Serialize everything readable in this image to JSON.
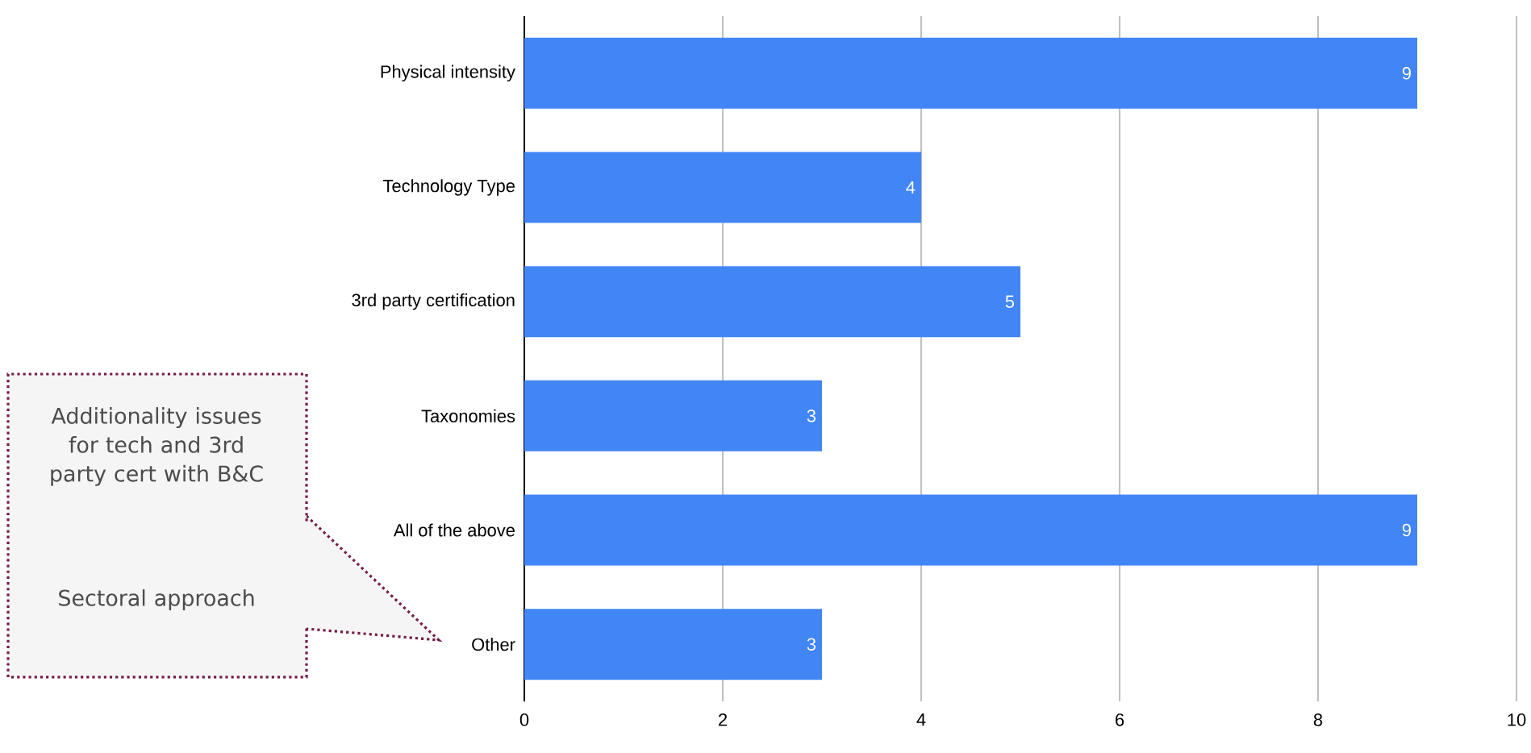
{
  "chart_data": {
    "type": "bar",
    "orientation": "horizontal",
    "categories": [
      "Physical intensity",
      "Technology Type",
      "3rd party certification",
      "Taxonomies",
      "All of the above",
      "Other"
    ],
    "values": [
      9,
      4,
      5,
      3,
      9,
      3
    ],
    "color": "#4285f4",
    "xlim": [
      0,
      10
    ],
    "xticks": [
      0,
      2,
      4,
      6,
      8,
      10
    ],
    "grid": "x",
    "data_labels": true,
    "annotations": [
      "Additionality issues for tech and 3rd party cert with B&C",
      "Sectoral approach"
    ]
  }
}
